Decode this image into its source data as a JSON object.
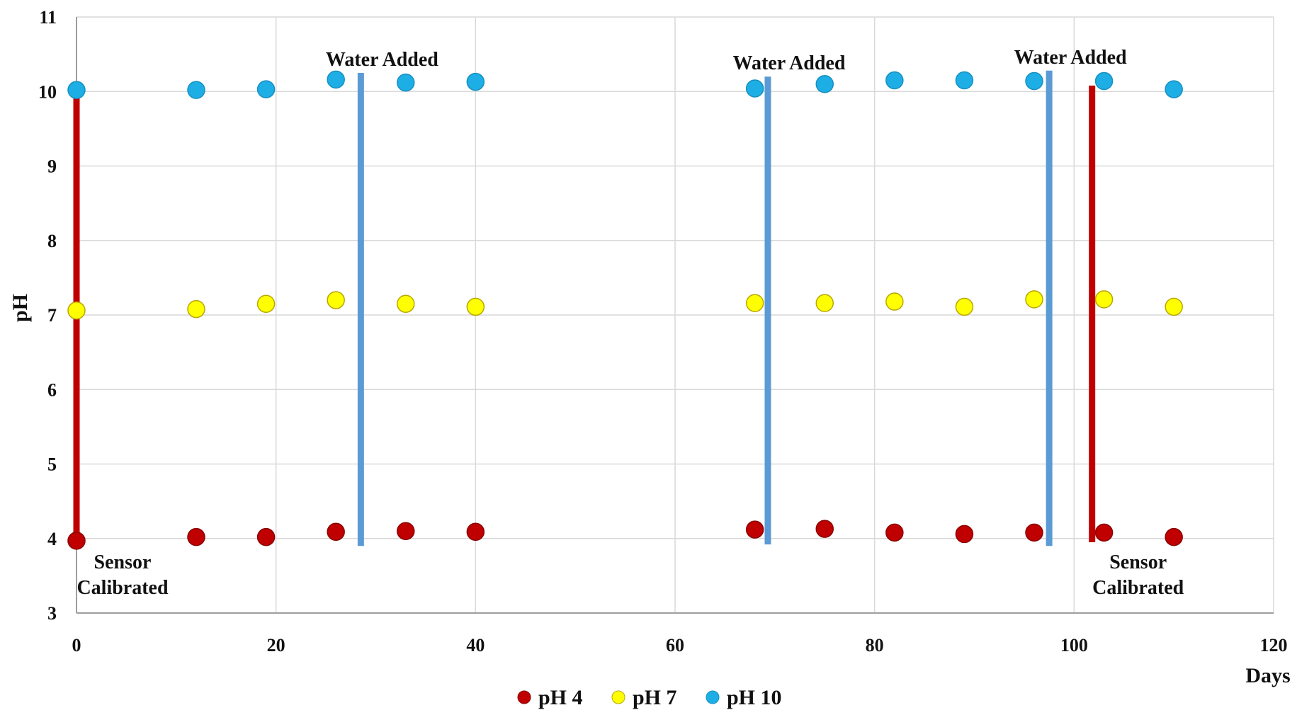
{
  "chart_data": {
    "type": "scatter",
    "title": "",
    "xlabel": "Days",
    "ylabel": "pH",
    "xlim": [
      0,
      120
    ],
    "ylim": [
      3,
      11
    ],
    "x_ticks": [
      0,
      20,
      40,
      60,
      80,
      100,
      120
    ],
    "y_ticks": [
      3,
      4,
      5,
      6,
      7,
      8,
      9,
      10,
      11
    ],
    "grid": true,
    "legend_position": "bottom-center",
    "series": [
      {
        "name": "pH 4",
        "color": "#c00000",
        "points": [
          [
            0,
            3.97
          ],
          [
            12,
            4.02
          ],
          [
            19,
            4.02
          ],
          [
            26,
            4.09
          ],
          [
            33,
            4.1
          ],
          [
            40,
            4.09
          ],
          [
            68,
            4.12
          ],
          [
            75,
            4.13
          ],
          [
            82,
            4.08
          ],
          [
            89,
            4.06
          ],
          [
            96,
            4.08
          ],
          [
            103,
            4.08
          ],
          [
            110,
            4.02
          ]
        ]
      },
      {
        "name": "pH 7",
        "color": "#ffff00",
        "points": [
          [
            0,
            7.06
          ],
          [
            12,
            7.08
          ],
          [
            19,
            7.15
          ],
          [
            26,
            7.2
          ],
          [
            33,
            7.15
          ],
          [
            40,
            7.11
          ],
          [
            68,
            7.16
          ],
          [
            75,
            7.16
          ],
          [
            82,
            7.18
          ],
          [
            89,
            7.11
          ],
          [
            96,
            7.21
          ],
          [
            103,
            7.21
          ],
          [
            110,
            7.11
          ]
        ]
      },
      {
        "name": "pH 10",
        "color": "#1eaee6",
        "points": [
          [
            0,
            10.02
          ],
          [
            12,
            10.02
          ],
          [
            19,
            10.03
          ],
          [
            26,
            10.16
          ],
          [
            33,
            10.12
          ],
          [
            40,
            10.13
          ],
          [
            68,
            10.04
          ],
          [
            75,
            10.1
          ],
          [
            82,
            10.15
          ],
          [
            89,
            10.15
          ],
          [
            96,
            10.14
          ],
          [
            103,
            10.14
          ],
          [
            110,
            10.03
          ]
        ]
      }
    ],
    "event_lines": [
      {
        "x": 0,
        "y_from": 3.97,
        "y_to": 10.02,
        "color": "#c00000",
        "label": "Sensor Calibrated",
        "label_lines": [
          "Sensor",
          "Calibrated"
        ],
        "label_anchor": "below"
      },
      {
        "x": 28.5,
        "y_from": 3.9,
        "y_to": 10.25,
        "color": "#5b9bd5",
        "label": "Water Added",
        "label_lines": [
          "Water Added"
        ],
        "label_anchor": "above"
      },
      {
        "x": 69.3,
        "y_from": 3.92,
        "y_to": 10.2,
        "color": "#5b9bd5",
        "label": "Water Added",
        "label_lines": [
          "Water Added"
        ],
        "label_anchor": "above"
      },
      {
        "x": 97.5,
        "y_from": 3.9,
        "y_to": 10.28,
        "color": "#5b9bd5",
        "label": "Water Added",
        "label_lines": [
          "Water Added"
        ],
        "label_anchor": "above"
      },
      {
        "x": 101.8,
        "y_from": 3.95,
        "y_to": 10.08,
        "color": "#c00000",
        "label": "Sensor Calibrated",
        "label_lines": [
          "Sensor",
          "Calibrated"
        ],
        "label_anchor": "below"
      }
    ]
  }
}
